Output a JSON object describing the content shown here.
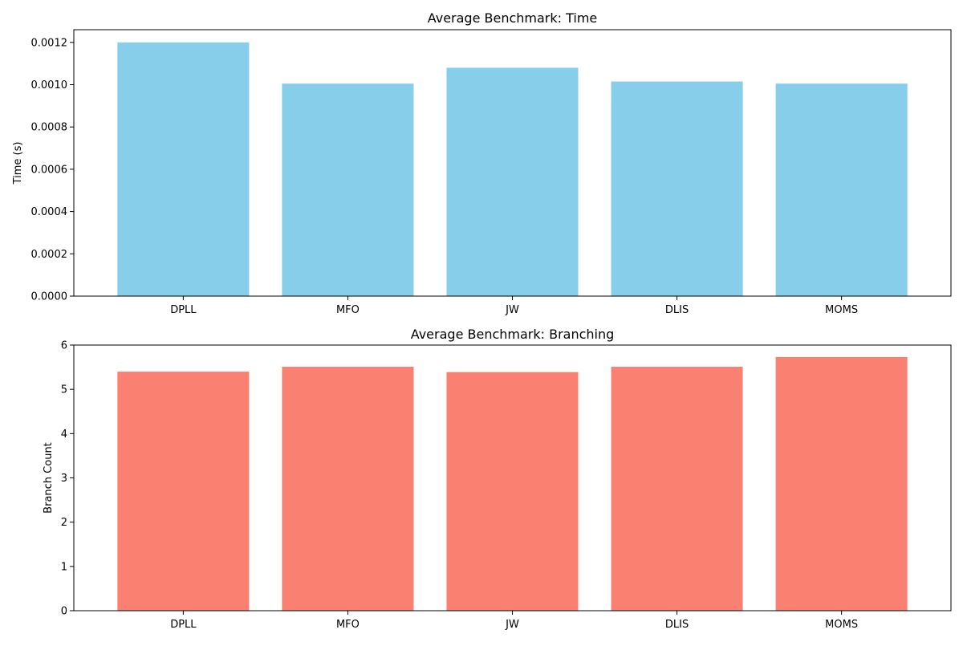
{
  "chart_data": [
    {
      "type": "bar",
      "title": "Average Benchmark: Time",
      "xlabel": "",
      "ylabel": "Time (s)",
      "categories": [
        "DPLL",
        "MFO",
        "JW",
        "DLIS",
        "MOMS"
      ],
      "values": [
        0.0012,
        0.001005,
        0.00108,
        0.001015,
        0.001005
      ],
      "ylim": [
        0,
        0.00126
      ],
      "yticks": [
        "0.0000",
        "0.0002",
        "0.0004",
        "0.0006",
        "0.0008",
        "0.0010",
        "0.0012"
      ],
      "ytick_values": [
        0,
        0.0002,
        0.0004,
        0.0006,
        0.0008,
        0.001,
        0.0012
      ],
      "color": "#87ceeb",
      "grid": false,
      "legend": false
    },
    {
      "type": "bar",
      "title": "Average Benchmark: Branching",
      "xlabel": "",
      "ylabel": "Branch Count",
      "categories": [
        "DPLL",
        "MFO",
        "JW",
        "DLIS",
        "MOMS"
      ],
      "values": [
        5.4,
        5.51,
        5.39,
        5.51,
        5.73
      ],
      "ylim": [
        0,
        6
      ],
      "yticks": [
        "0",
        "1",
        "2",
        "3",
        "4",
        "5",
        "6"
      ],
      "ytick_values": [
        0,
        1,
        2,
        3,
        4,
        5,
        6
      ],
      "color": "#fa8072",
      "grid": false,
      "legend": false
    }
  ]
}
